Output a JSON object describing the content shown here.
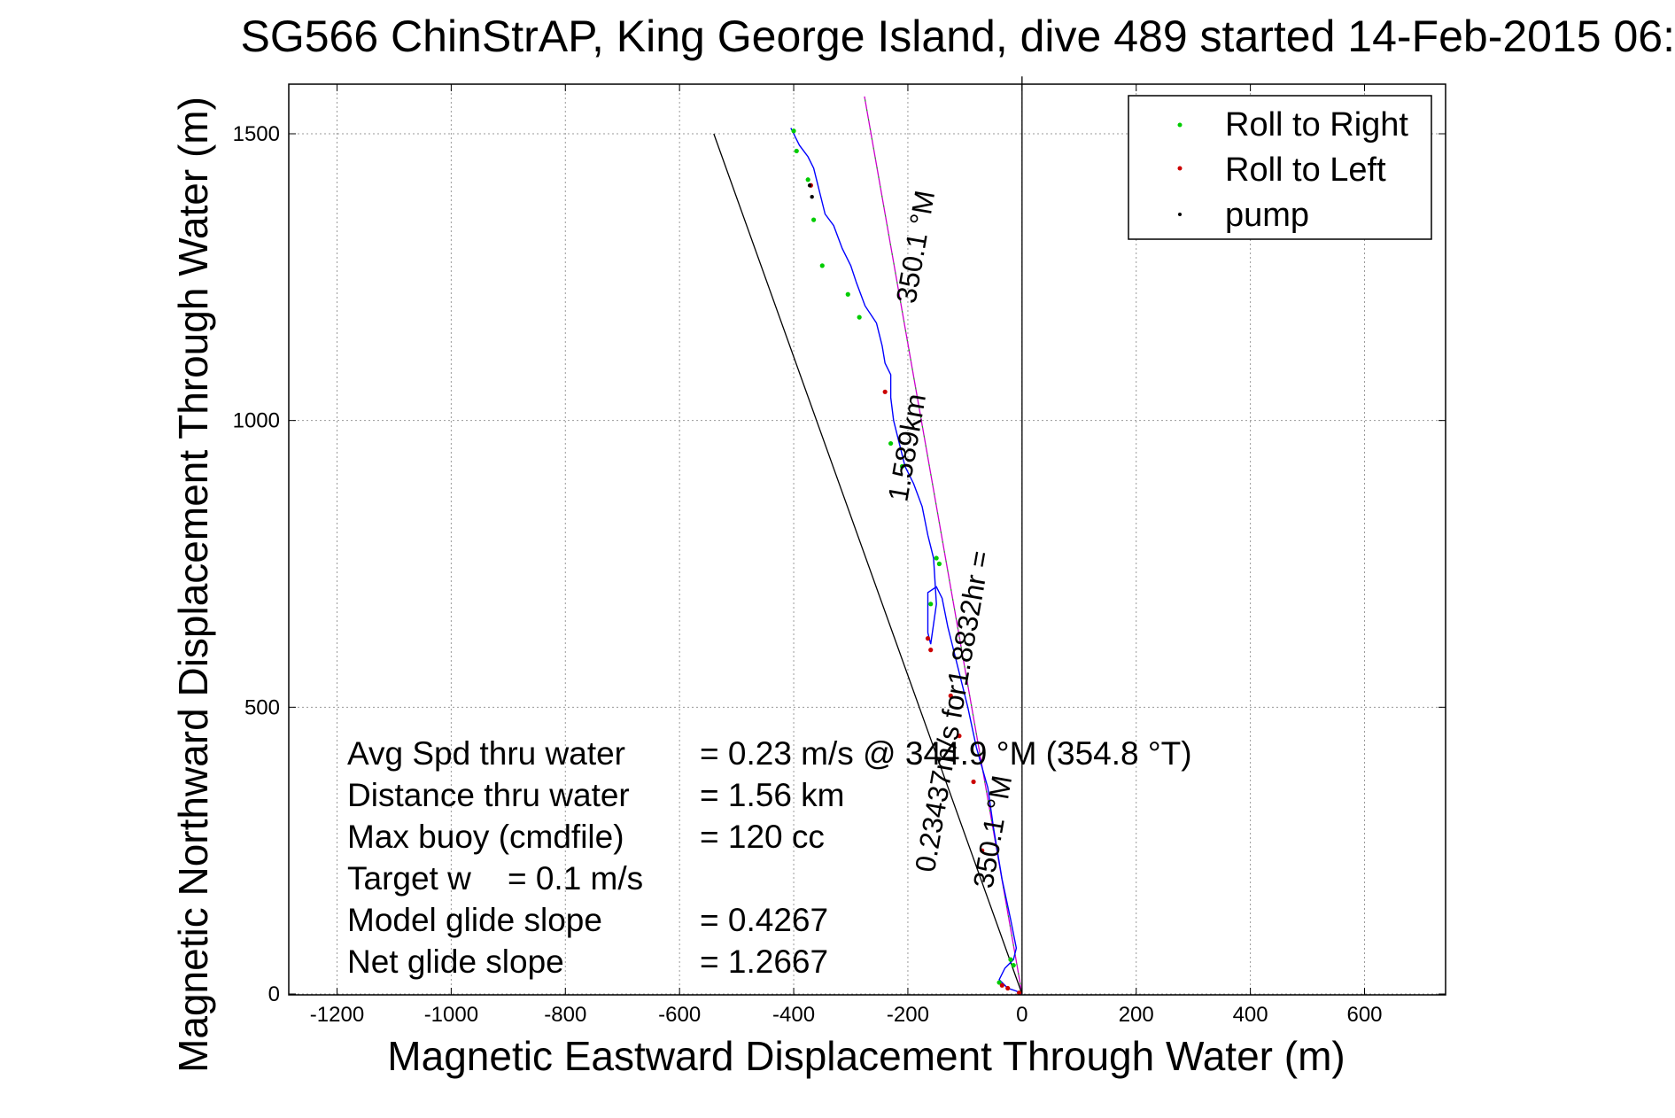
{
  "chart_data": {
    "type": "line",
    "title": "SG566 ChinStrAP, King George Island, dive 489 started 14-Feb-2015 06:",
    "xlabel": "Magnetic Eastward Displacement Through Water (m)",
    "ylabel": "Magnetic Northward Displacement Through Water (m)",
    "xlim": [
      -1200,
      700
    ],
    "ylim": [
      0,
      1600
    ],
    "x_ticks": [
      -1200,
      -1000,
      -800,
      -600,
      -400,
      -200,
      0,
      200,
      400,
      600
    ],
    "y_ticks": [
      0,
      500,
      1000,
      1500
    ],
    "grid": true,
    "legend_position": "top-right",
    "legend": [
      {
        "label": "Roll to Right",
        "color": "#00cc00"
      },
      {
        "label": "Roll to Left",
        "color": "#cc0000"
      },
      {
        "label": "pump",
        "color": "#000000"
      }
    ],
    "track": {
      "color": "#0000ff",
      "x": [
        0,
        -10,
        -25,
        -40,
        -30,
        -15,
        -10,
        -20,
        -35,
        -50,
        -60,
        -80,
        -95,
        -110,
        -120,
        -130,
        -140,
        -150,
        -165,
        -165,
        -160,
        -150,
        -155,
        -165,
        -175,
        -190,
        -205,
        -215,
        -225,
        -230,
        -230,
        -240,
        -245,
        -255,
        -275,
        -290,
        -300,
        -315,
        -330,
        -345,
        -355,
        -360,
        -365,
        -375,
        -390,
        -400,
        -405
      ],
      "y": [
        0,
        5,
        10,
        25,
        45,
        60,
        80,
        130,
        200,
        290,
        360,
        430,
        500,
        560,
        600,
        640,
        690,
        710,
        700,
        630,
        610,
        680,
        760,
        800,
        850,
        890,
        920,
        960,
        1000,
        1040,
        1080,
        1100,
        1130,
        1170,
        1200,
        1240,
        1270,
        1300,
        1340,
        1360,
        1400,
        1420,
        1440,
        1460,
        1480,
        1500,
        1510
      ]
    },
    "roll_right": {
      "x": [
        -15,
        -20,
        -40,
        -145,
        -150,
        -160,
        -210,
        -230,
        -285,
        -305,
        -350,
        -365,
        -375,
        -395,
        -400
      ],
      "y": [
        50,
        60,
        20,
        750,
        760,
        680,
        920,
        960,
        1180,
        1220,
        1270,
        1350,
        1420,
        1470,
        1505
      ]
    },
    "roll_left": {
      "x": [
        -5,
        -25,
        -35,
        -70,
        -85,
        -110,
        -125,
        -160,
        -165,
        -240,
        -370
      ],
      "y": [
        2,
        10,
        15,
        250,
        370,
        450,
        520,
        600,
        620,
        1050,
        1410
      ]
    },
    "pump": {
      "x": [
        -368,
        -372
      ],
      "y": [
        1390,
        1410
      ]
    },
    "reference_lines": [
      {
        "name": "heading_350_1_magenta",
        "color": "#cc00cc",
        "x": [
          0,
          -276
        ],
        "y": [
          0,
          1565
        ]
      },
      {
        "name": "heading_350_1_green",
        "color": "#00cc00",
        "x": [
          0,
          -276
        ],
        "y": [
          0,
          1565
        ]
      },
      {
        "name": "net_glide_black",
        "color": "#000000",
        "x": [
          0,
          -540
        ],
        "y": [
          0,
          1500
        ]
      },
      {
        "name": "vertical_black",
        "color": "#000000",
        "x": [
          0,
          0
        ],
        "y": [
          0,
          1600
        ]
      }
    ],
    "annotations": [
      {
        "text": "350.1 °M",
        "x": -170,
        "y": 1300
      },
      {
        "text": "1.589km",
        "x": -185,
        "y": 950
      },
      {
        "text": "0.23437m/s for1.8832hr =",
        "x": -105,
        "y": 490
      },
      {
        "text": "350.1 °M",
        "x": -35,
        "y": 280
      }
    ],
    "stats": [
      {
        "label": "Avg Spd thru water",
        "value": "=  0.23 m/s @ 344.9 °M (354.8 °T)"
      },
      {
        "label": "Distance thru water",
        "value": "=  1.56 km"
      },
      {
        "label": "Max buoy (cmdfile)",
        "value": "= 120 cc"
      },
      {
        "label": "Target w    = 0.1 m/s",
        "value": ""
      },
      {
        "label": "Model glide slope",
        "value": "= 0.4267"
      },
      {
        "label": "Net glide slope",
        "value": "= 1.2667"
      }
    ]
  }
}
